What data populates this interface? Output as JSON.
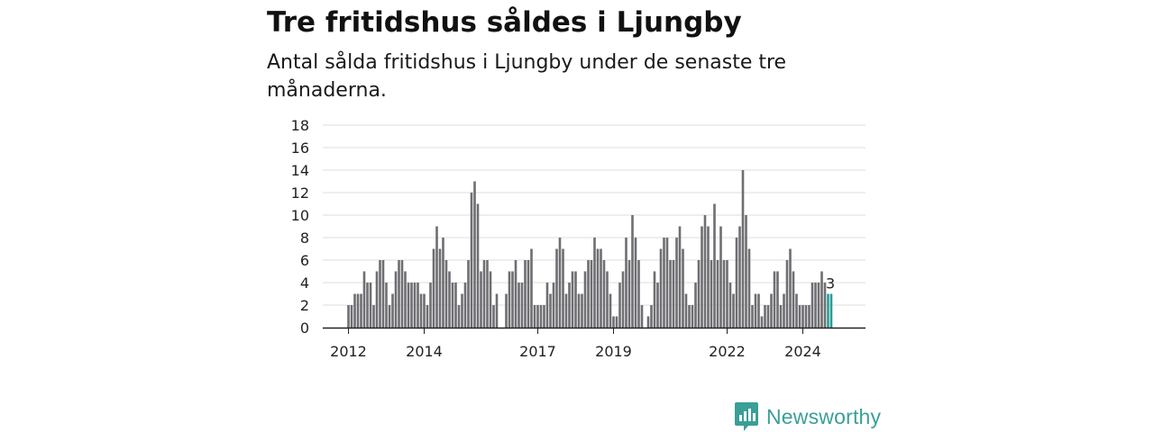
{
  "title": "Tre fritidshus såldes i Ljungby",
  "subtitle": "Antal sålda fritidshus i Ljungby under de senaste tre månaderna.",
  "brand": {
    "name": "Newsworthy",
    "icon": "newsworthy-logo-icon",
    "color": "#3a9f97"
  },
  "chart_data": {
    "type": "bar",
    "title": "Tre fritidshus såldes i Ljungby",
    "subtitle": "Antal sålda fritidshus i Ljungby under de senaste tre månaderna.",
    "ylim": [
      0,
      18
    ],
    "yticks": [
      "0",
      "2",
      "4",
      "6",
      "8",
      "10",
      "12",
      "14",
      "16",
      "18"
    ],
    "xticks": [
      {
        "label": "2012",
        "index": 0
      },
      {
        "label": "2014",
        "index": 24
      },
      {
        "label": "2017",
        "index": 60
      },
      {
        "label": "2019",
        "index": 84
      },
      {
        "label": "2022",
        "index": 120
      },
      {
        "label": "2024",
        "index": 144
      }
    ],
    "first_period": "2012-01",
    "grid": true,
    "bar_color": "#6e6e73",
    "highlight_color": "#2a9d95",
    "highlight_last": 2,
    "highlight_label": "3",
    "values": [
      2,
      2,
      3,
      3,
      3,
      5,
      4,
      4,
      2,
      5,
      6,
      6,
      4,
      2,
      3,
      5,
      6,
      6,
      5,
      4,
      4,
      4,
      4,
      3,
      3,
      2,
      4,
      7,
      9,
      7,
      8,
      6,
      5,
      4,
      4,
      2,
      3,
      4,
      6,
      12,
      13,
      11,
      5,
      6,
      6,
      5,
      2,
      3,
      0,
      0,
      3,
      5,
      5,
      6,
      4,
      4,
      6,
      6,
      7,
      2,
      2,
      2,
      2,
      4,
      3,
      4,
      7,
      8,
      7,
      3,
      4,
      5,
      5,
      3,
      3,
      5,
      6,
      6,
      8,
      7,
      7,
      6,
      5,
      3,
      1,
      1,
      4,
      5,
      8,
      6,
      10,
      8,
      6,
      2,
      0,
      1,
      2,
      5,
      4,
      7,
      8,
      8,
      6,
      6,
      8,
      9,
      7,
      3,
      2,
      2,
      4,
      6,
      9,
      10,
      9,
      6,
      11,
      6,
      9,
      6,
      6,
      4,
      3,
      8,
      9,
      14,
      10,
      7,
      2,
      3,
      3,
      1,
      2,
      2,
      3,
      5,
      5,
      2,
      3,
      6,
      7,
      5,
      3,
      2,
      2,
      2,
      2,
      4,
      4,
      4,
      5,
      4,
      3,
      3
    ]
  }
}
